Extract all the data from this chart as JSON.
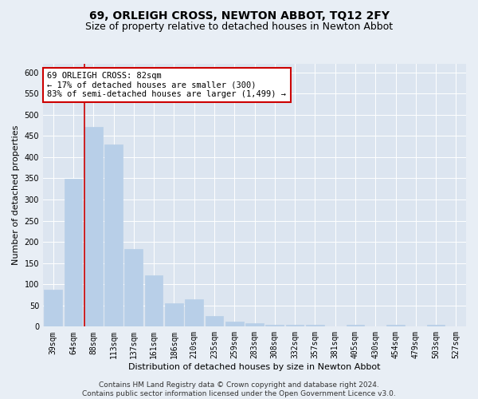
{
  "title": "69, ORLEIGH CROSS, NEWTON ABBOT, TQ12 2FY",
  "subtitle": "Size of property relative to detached houses in Newton Abbot",
  "xlabel": "Distribution of detached houses by size in Newton Abbot",
  "ylabel": "Number of detached properties",
  "categories": [
    "39sqm",
    "64sqm",
    "88sqm",
    "113sqm",
    "137sqm",
    "161sqm",
    "186sqm",
    "210sqm",
    "235sqm",
    "259sqm",
    "283sqm",
    "308sqm",
    "332sqm",
    "357sqm",
    "381sqm",
    "405sqm",
    "430sqm",
    "454sqm",
    "479sqm",
    "503sqm",
    "527sqm"
  ],
  "values": [
    88,
    348,
    472,
    430,
    183,
    122,
    55,
    65,
    25,
    12,
    8,
    5,
    5,
    4,
    0,
    5,
    0,
    4,
    0,
    5,
    0
  ],
  "bar_color": "#b8cfe8",
  "bar_edge_color": "#b8cfe8",
  "highlight_bar_index": 2,
  "highlight_color": "#cc0000",
  "annotation_title": "69 ORLEIGH CROSS: 82sqm",
  "annotation_line1": "← 17% of detached houses are smaller (300)",
  "annotation_line2": "83% of semi-detached houses are larger (1,499) →",
  "annotation_box_facecolor": "#ffffff",
  "annotation_box_edgecolor": "#cc0000",
  "ylim": [
    0,
    620
  ],
  "yticks": [
    0,
    50,
    100,
    150,
    200,
    250,
    300,
    350,
    400,
    450,
    500,
    550,
    600
  ],
  "footer1": "Contains HM Land Registry data © Crown copyright and database right 2024.",
  "footer2": "Contains public sector information licensed under the Open Government Licence v3.0.",
  "bg_color": "#e8eef5",
  "plot_bg_color": "#dce5f0",
  "grid_color": "#ffffff",
  "title_fontsize": 10,
  "subtitle_fontsize": 9,
  "axis_label_fontsize": 8,
  "tick_fontsize": 7,
  "annotation_fontsize": 7.5,
  "footer_fontsize": 6.5
}
